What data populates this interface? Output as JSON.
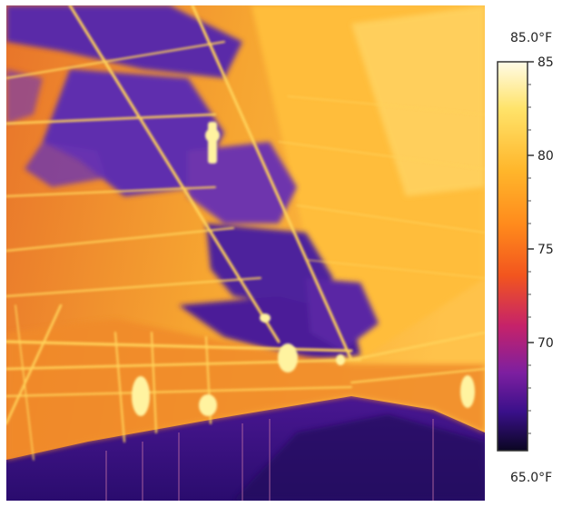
{
  "colorbar": {
    "max_label": "85.0°F",
    "min_label": "65.0°F",
    "ticks": [
      "85",
      "80",
      "75",
      "70"
    ],
    "gradient": [
      "#fffbe6",
      "#ffe36a",
      "#ffb62b",
      "#ff8a1c",
      "#f2551e",
      "#c5226a",
      "#7d1fa0",
      "#3a108a",
      "#0b0622"
    ]
  },
  "image": {
    "subject": "thermal infrared image of a warehouse ceiling with roof trusses"
  }
}
